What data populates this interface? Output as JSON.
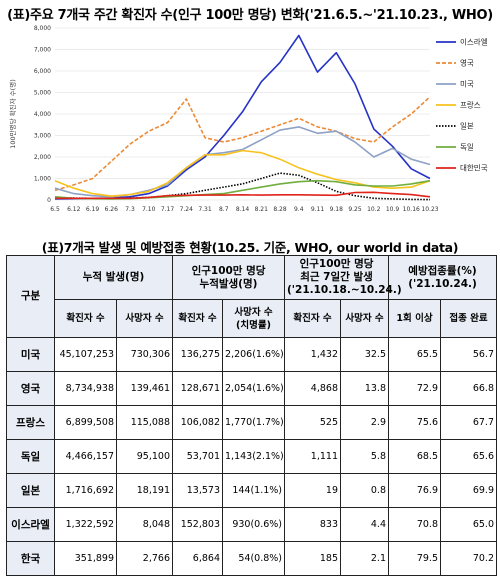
{
  "chart_title": "(표)주요 7개국 주간 확진자 수(인구 100만 명당) 변화('21.6.5.~'21.10.23., WHO)",
  "chart_data": {
    "type": "line",
    "ylabel": "100만명당 확진자 수(명)",
    "ylim": [
      0,
      8000
    ],
    "yticks": [
      "0",
      "1,000",
      "2,000",
      "3,000",
      "4,000",
      "5,000",
      "6,000",
      "7,000",
      "8,000"
    ],
    "categories": [
      "6.5",
      "6.12",
      "6.19",
      "6.26",
      "7.3",
      "7.10",
      "7.17",
      "7.24",
      "7.31",
      "8.7",
      "8.14",
      "8.21",
      "8.28",
      "9.4",
      "9.11",
      "9.18",
      "9.25",
      "10.2",
      "10.9",
      "10.16",
      "10.23"
    ],
    "series": [
      {
        "name": "이스라엘",
        "color": "#2633c7",
        "dash": "",
        "values": [
          50,
          60,
          80,
          90,
          150,
          300,
          650,
          1400,
          2000,
          3000,
          4100,
          5500,
          6400,
          7650,
          5950,
          6850,
          5400,
          3300,
          2500,
          1450,
          1000
        ]
      },
      {
        "name": "영국",
        "color": "#ec8a35",
        "dash": "4,2",
        "values": [
          450,
          700,
          1000,
          1800,
          2600,
          3200,
          3600,
          4700,
          2900,
          2700,
          2900,
          3200,
          3500,
          3800,
          3400,
          3200,
          2850,
          2700,
          3400,
          4000,
          4800
        ]
      },
      {
        "name": "미국",
        "color": "#8ea2c6",
        "dash": "",
        "values": [
          550,
          300,
          200,
          150,
          250,
          450,
          700,
          1500,
          2100,
          2200,
          2350,
          2800,
          3250,
          3400,
          3100,
          3200,
          2700,
          2000,
          2400,
          1900,
          1650
        ]
      },
      {
        "name": "프랑스",
        "color": "#f7c21d",
        "dash": "",
        "values": [
          900,
          550,
          300,
          180,
          250,
          400,
          800,
          1500,
          2100,
          2100,
          2300,
          2200,
          1900,
          1500,
          1200,
          950,
          800,
          600,
          550,
          600,
          900
        ]
      },
      {
        "name": "일본",
        "color": "#000000",
        "dash": "1.5,1.5",
        "values": [
          120,
          90,
          80,
          80,
          90,
          120,
          200,
          300,
          450,
          600,
          750,
          1000,
          1250,
          1150,
          800,
          400,
          200,
          80,
          50,
          30,
          20
        ]
      },
      {
        "name": "독일",
        "color": "#6fae3f",
        "dash": "",
        "values": [
          150,
          80,
          60,
          50,
          60,
          100,
          150,
          200,
          250,
          300,
          450,
          600,
          750,
          850,
          900,
          850,
          700,
          650,
          650,
          750,
          900
        ]
      },
      {
        "name": "대한민국",
        "color": "#e0231b",
        "dash": "",
        "values": [
          80,
          80,
          80,
          80,
          80,
          120,
          200,
          220,
          230,
          230,
          240,
          230,
          240,
          240,
          230,
          220,
          350,
          360,
          300,
          250,
          150
        ]
      }
    ]
  },
  "table_title": "(표)7개국 발생 및 예방접종 현황(10.25. 기준, WHO, our world in data)",
  "table": {
    "corner": "구분",
    "groups": [
      "누적 발생(명)",
      "인구100만 명당\n누적발생(명)",
      "인구100만 명당\n최근 7일간 발생\n('21.10.18.~10.24.)",
      "예방접종률(%)\n('21.10.24.)"
    ],
    "subheaders": [
      "확진자 수",
      "사망자 수",
      "확진자 수",
      "사망자 수\n(치명률)",
      "확진자 수",
      "사망자 수",
      "1회 이상",
      "접종 완료"
    ],
    "rows": [
      {
        "country": "미국",
        "cells": [
          "45,107,253",
          "730,306",
          "136,275",
          "2,206(1.6%)",
          "1,432",
          "32.5",
          "65.5",
          "56.7"
        ]
      },
      {
        "country": "영국",
        "cells": [
          "8,734,938",
          "139,461",
          "128,671",
          "2,054(1.6%)",
          "4,868",
          "13.8",
          "72.9",
          "66.8"
        ]
      },
      {
        "country": "프랑스",
        "cells": [
          "6,899,508",
          "115,088",
          "106,082",
          "1,770(1.7%)",
          "525",
          "2.9",
          "75.6",
          "67.7"
        ]
      },
      {
        "country": "독일",
        "cells": [
          "4,466,157",
          "95,100",
          "53,701",
          "1,143(2.1%)",
          "1,111",
          "5.8",
          "68.5",
          "65.6"
        ]
      },
      {
        "country": "일본",
        "cells": [
          "1,716,692",
          "18,191",
          "13,573",
          "144(1.1%)",
          "19",
          "0.8",
          "76.9",
          "69.9"
        ]
      },
      {
        "country": "이스라엘",
        "cells": [
          "1,322,592",
          "8,048",
          "152,803",
          "930(0.6%)",
          "833",
          "4.4",
          "70.8",
          "65.0"
        ]
      },
      {
        "country": "한국",
        "cells": [
          "351,899",
          "2,766",
          "6,864",
          "54(0.8%)",
          "185",
          "2.1",
          "79.5",
          "70.2"
        ]
      }
    ]
  }
}
